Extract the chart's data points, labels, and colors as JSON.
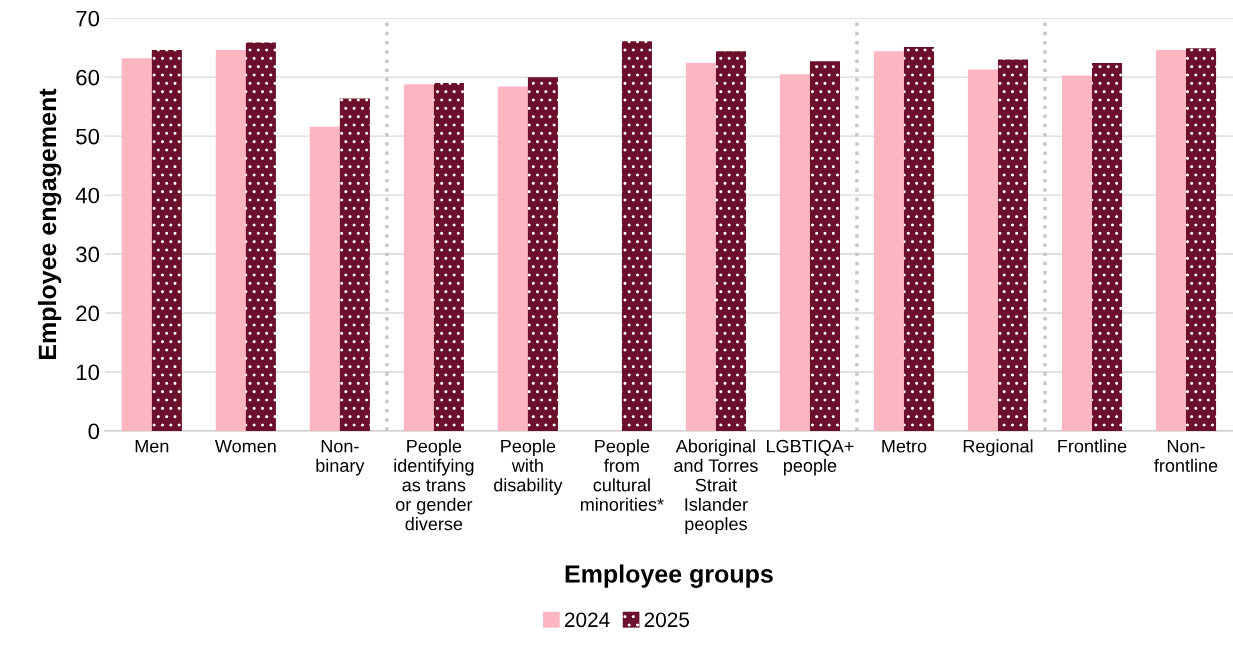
{
  "chart_data": {
    "type": "bar",
    "xlabel": "Employee groups",
    "ylabel": "Employee engagement",
    "categories": [
      "Men",
      "Women",
      "Non-\nbinary",
      "People\nidentifying\nas trans\nor gender\ndiverse",
      "People\nwith\ndisability",
      "People\nfrom\ncultural\nminorities*",
      "Aboriginal\nand Torres\nStrait\nIslander\npeoples",
      "LGBTIQA+\npeople",
      "Metro",
      "Regional",
      "Frontline",
      "Non-\nfrontline"
    ],
    "series": [
      {
        "name": "2024",
        "color": "#fbb6c1",
        "values": [
          63.2,
          64.6,
          51.6,
          58.8,
          58.4,
          null,
          62.4,
          60.5,
          64.4,
          61.3,
          60.3,
          64.6
        ]
      },
      {
        "name": "2025",
        "color": "#6b0f2a",
        "values": [
          64.6,
          65.9,
          56.4,
          59.0,
          60.0,
          66.1,
          64.4,
          62.7,
          65.1,
          63.0,
          62.4,
          64.9
        ]
      }
    ],
    "ylim": [
      0,
      70
    ],
    "yticks": [
      0,
      10,
      20,
      30,
      40,
      50,
      60,
      70
    ],
    "grid": "y",
    "legend": "bottom"
  }
}
